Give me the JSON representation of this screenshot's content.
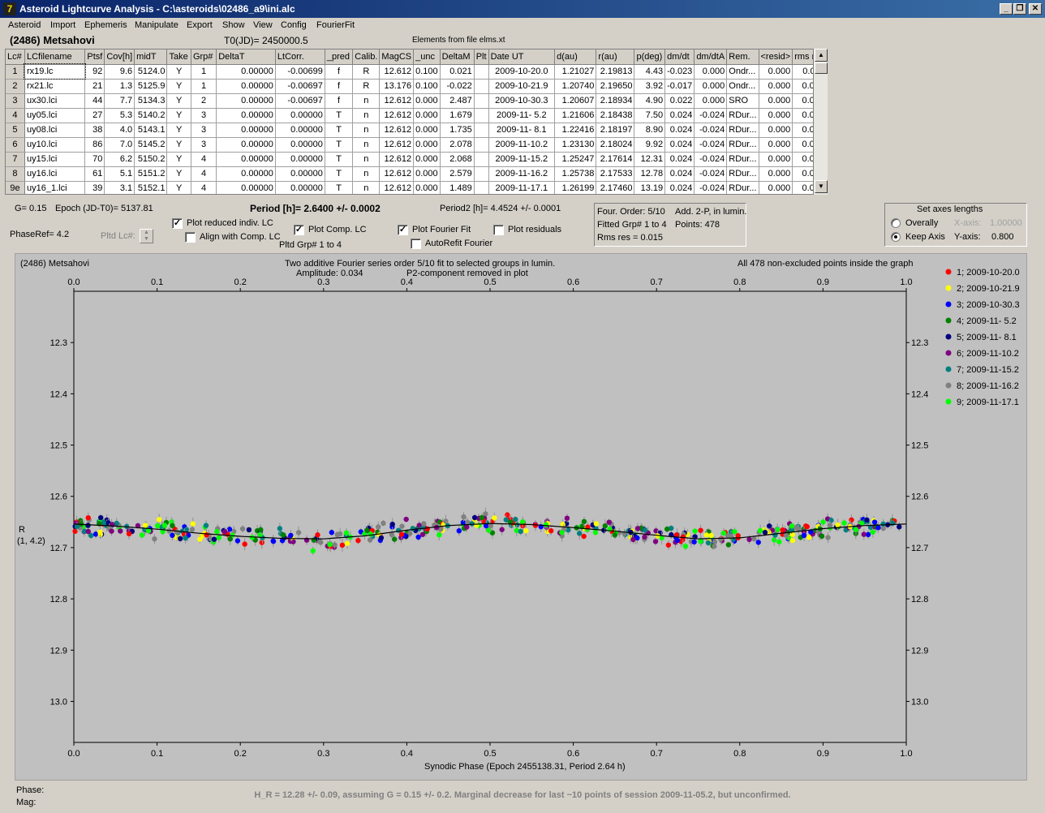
{
  "window": {
    "title": "Asteroid Lightcurve Analysis - C:\\asteroids\\02486_a9\\ini.alc",
    "app_icon": "7",
    "btn_min": "_",
    "btn_restore": "❐",
    "btn_close": "✕"
  },
  "menu": [
    "Asteroid",
    "Import",
    "Ephemeris",
    "Manipulate",
    "Export",
    "Show",
    "View",
    "Config",
    "FourierFit"
  ],
  "header": {
    "object": "(2486) Metsahovi",
    "t0": "T0(JD)= 2450000.5",
    "elements": "Elements from file elms.xt"
  },
  "table": {
    "columns": [
      "Lc#",
      "LCfilename",
      "Ptsf",
      "Cov[h]",
      "midT",
      "Take",
      "Grp#",
      "DeltaT",
      "LtCorr.",
      "_pred",
      "Calib.",
      "MagCS",
      "_unc",
      "DeltaM",
      "Plt",
      "Date UT",
      "d(au)",
      "r(au)",
      "p(deg)",
      "dm/dt",
      "dm/dtA",
      "Rem.",
      "<resid>",
      "rms res"
    ],
    "rows": [
      [
        "1",
        "rx19.lc",
        "92",
        "9.6",
        "5124.0",
        "Y",
        "1",
        "0.00000",
        "-0.00699",
        "f",
        "R",
        "12.612",
        "0.100",
        "0.021",
        "",
        "2009-10-20.0",
        "1.21027",
        "2.19813",
        "4.43",
        "-0.023",
        "0.000",
        "Ondr...",
        "0.000",
        "0.011"
      ],
      [
        "2",
        "rx21.lc",
        "21",
        "1.3",
        "5125.9",
        "Y",
        "1",
        "0.00000",
        "-0.00697",
        "f",
        "R",
        "13.176",
        "0.100",
        "-0.022",
        "",
        "2009-10-21.9",
        "1.20740",
        "2.19650",
        "3.92",
        "-0.017",
        "0.000",
        "Ondr...",
        "0.000",
        "0.008"
      ],
      [
        "3",
        "ux30.lci",
        "44",
        "7.7",
        "5134.3",
        "Y",
        "2",
        "0.00000",
        "-0.00697",
        "f",
        "n",
        "12.612",
        "0.000",
        "2.487",
        "",
        "2009-10-30.3",
        "1.20607",
        "2.18934",
        "4.90",
        "0.022",
        "0.000",
        "SRO",
        "0.000",
        "0.013"
      ],
      [
        "4",
        "uy05.lci",
        "27",
        "5.3",
        "5140.2",
        "Y",
        "3",
        "0.00000",
        "0.00000",
        "T",
        "n",
        "12.612",
        "0.000",
        "1.679",
        "",
        "2009-11- 5.2",
        "1.21606",
        "2.18438",
        "7.50",
        "0.024",
        "-0.024",
        "RDur...",
        "0.000",
        "0.018"
      ],
      [
        "5",
        "uy08.lci",
        "38",
        "4.0",
        "5143.1",
        "Y",
        "3",
        "0.00000",
        "0.00000",
        "T",
        "n",
        "12.612",
        "0.000",
        "1.735",
        "",
        "2009-11- 8.1",
        "1.22416",
        "2.18197",
        "8.90",
        "0.024",
        "-0.024",
        "RDur...",
        "0.000",
        "0.013"
      ],
      [
        "6",
        "uy10.lci",
        "86",
        "7.0",
        "5145.2",
        "Y",
        "3",
        "0.00000",
        "0.00000",
        "T",
        "n",
        "12.612",
        "0.000",
        "2.078",
        "",
        "2009-11-10.2",
        "1.23130",
        "2.18024",
        "9.92",
        "0.024",
        "-0.024",
        "RDur...",
        "0.000",
        "0.017"
      ],
      [
        "7",
        "uy15.lci",
        "70",
        "6.2",
        "5150.2",
        "Y",
        "4",
        "0.00000",
        "0.00000",
        "T",
        "n",
        "12.612",
        "0.000",
        "2.068",
        "",
        "2009-11-15.2",
        "1.25247",
        "2.17614",
        "12.31",
        "0.024",
        "-0.024",
        "RDur...",
        "0.000",
        "0.014"
      ],
      [
        "8",
        "uy16.lci",
        "61",
        "5.1",
        "5151.2",
        "Y",
        "4",
        "0.00000",
        "0.00000",
        "T",
        "n",
        "12.612",
        "0.000",
        "2.579",
        "",
        "2009-11-16.2",
        "1.25738",
        "2.17533",
        "12.78",
        "0.024",
        "-0.024",
        "RDur...",
        "0.000",
        "0.016"
      ],
      [
        "9e",
        "uy16_1.lci",
        "39",
        "3.1",
        "5152.1",
        "Y",
        "4",
        "0.00000",
        "0.00000",
        "T",
        "n",
        "12.612",
        "0.000",
        "1.489",
        "",
        "2009-11-17.1",
        "1.26199",
        "2.17460",
        "13.19",
        "0.024",
        "-0.024",
        "RDur...",
        "0.000",
        "0.017"
      ]
    ]
  },
  "params": {
    "g": "G= 0.15",
    "epoch": "Epoch (JD-T0)= 5137.81",
    "period": "Period [h]= 2.6400 +/- 0.0002",
    "period2": "Period2 [h]= 4.4524 +/- 0.0001",
    "phaseref": "PhaseRef= 4.2",
    "pltd_lc": "Pltd Lc#:",
    "pltd_grp": "Pltd Grp#  1   to   4"
  },
  "checkboxes": {
    "plot_reduced": {
      "label": "Plot reduced indiv. LC",
      "checked": true
    },
    "align_comp": {
      "label": "Align with Comp. LC",
      "checked": false
    },
    "plot_comp": {
      "label": "Plot Comp. LC",
      "checked": true
    },
    "plot_fourier": {
      "label": "Plot Fourier Fit",
      "checked": true
    },
    "autorefit": {
      "label": "AutoRefit Fourier",
      "checked": false
    },
    "plot_residuals": {
      "label": "Plot residuals",
      "checked": false
    }
  },
  "fourier_box": {
    "order": "Four. Order:  5/10",
    "add": "Add. 2-P, in lumin.",
    "fitted": "Fitted Grp# 1 to 4",
    "points": "Points: 478",
    "rms": "Rms res     = 0.015"
  },
  "axes_box": {
    "title": "Set axes lengths",
    "overally": "Overally",
    "keep_axis": "Keep Axis",
    "x_axis_label": "X-axis:",
    "x_axis_value": "1.00000",
    "y_axis_label": "Y-axis:",
    "y_axis_value": "0.800"
  },
  "plot": {
    "object": "(2486) Metsahovi",
    "desc1": "Two additive Fourier series order 5/10 fit to selected groups in lumin.",
    "desc2": "Amplitude: 0.034",
    "desc3": "P2-component removed in plot",
    "points_note": "All 478 non-excluded points inside the graph",
    "ylabel1": "R",
    "ylabel2": "(1, 4.2)",
    "xlabel": "Synodic Phase (Epoch 2455138.31, Period 2.64 h)",
    "phase_label": "Phase:",
    "mag_label": "Mag:"
  },
  "chart_data": {
    "type": "scatter",
    "xlim": [
      0.0,
      1.0
    ],
    "ylim": [
      12.2,
      13.08
    ],
    "y_inverted": true,
    "xticks": [
      "0.0",
      "0.1",
      "0.2",
      "0.3",
      "0.4",
      "0.5",
      "0.6",
      "0.7",
      "0.8",
      "0.9",
      "1.0"
    ],
    "yticks": [
      "12.3",
      "12.4",
      "12.5",
      "12.6",
      "12.7",
      "12.8",
      "12.9",
      "13.0"
    ],
    "legend_position": "right",
    "series": [
      {
        "name": "1; 2009-10-20.0",
        "color": "#ff0000"
      },
      {
        "name": "2; 2009-10-21.9",
        "color": "#ffff00"
      },
      {
        "name": "3; 2009-10-30.3",
        "color": "#0000ff"
      },
      {
        "name": "4; 2009-11- 5.2",
        "color": "#008000"
      },
      {
        "name": "5; 2009-11- 8.1",
        "color": "#000080"
      },
      {
        "name": "6; 2009-11-10.2",
        "color": "#800080"
      },
      {
        "name": "7; 2009-11-15.2",
        "color": "#008080"
      },
      {
        "name": "8; 2009-11-16.2",
        "color": "#808080"
      },
      {
        "name": "9; 2009-11-17.1",
        "color": "#00ff00"
      }
    ],
    "fit_curve": {
      "x": [
        0.0,
        0.05,
        0.1,
        0.15,
        0.2,
        0.25,
        0.3,
        0.35,
        0.4,
        0.45,
        0.5,
        0.55,
        0.6,
        0.65,
        0.7,
        0.75,
        0.8,
        0.85,
        0.9,
        0.95,
        1.0
      ],
      "y": [
        12.654,
        12.658,
        12.664,
        12.672,
        12.678,
        12.682,
        12.683,
        12.677,
        12.666,
        12.657,
        12.653,
        12.655,
        12.661,
        12.668,
        12.676,
        12.683,
        12.681,
        12.672,
        12.663,
        12.657,
        12.654
      ]
    }
  },
  "footer": "H_R = 12.28 +/- 0.09, assuming G = 0.15 +/- 0.2. Marginal decrease for last ~10 points of session 2009-11-05.2, but unconfirmed."
}
